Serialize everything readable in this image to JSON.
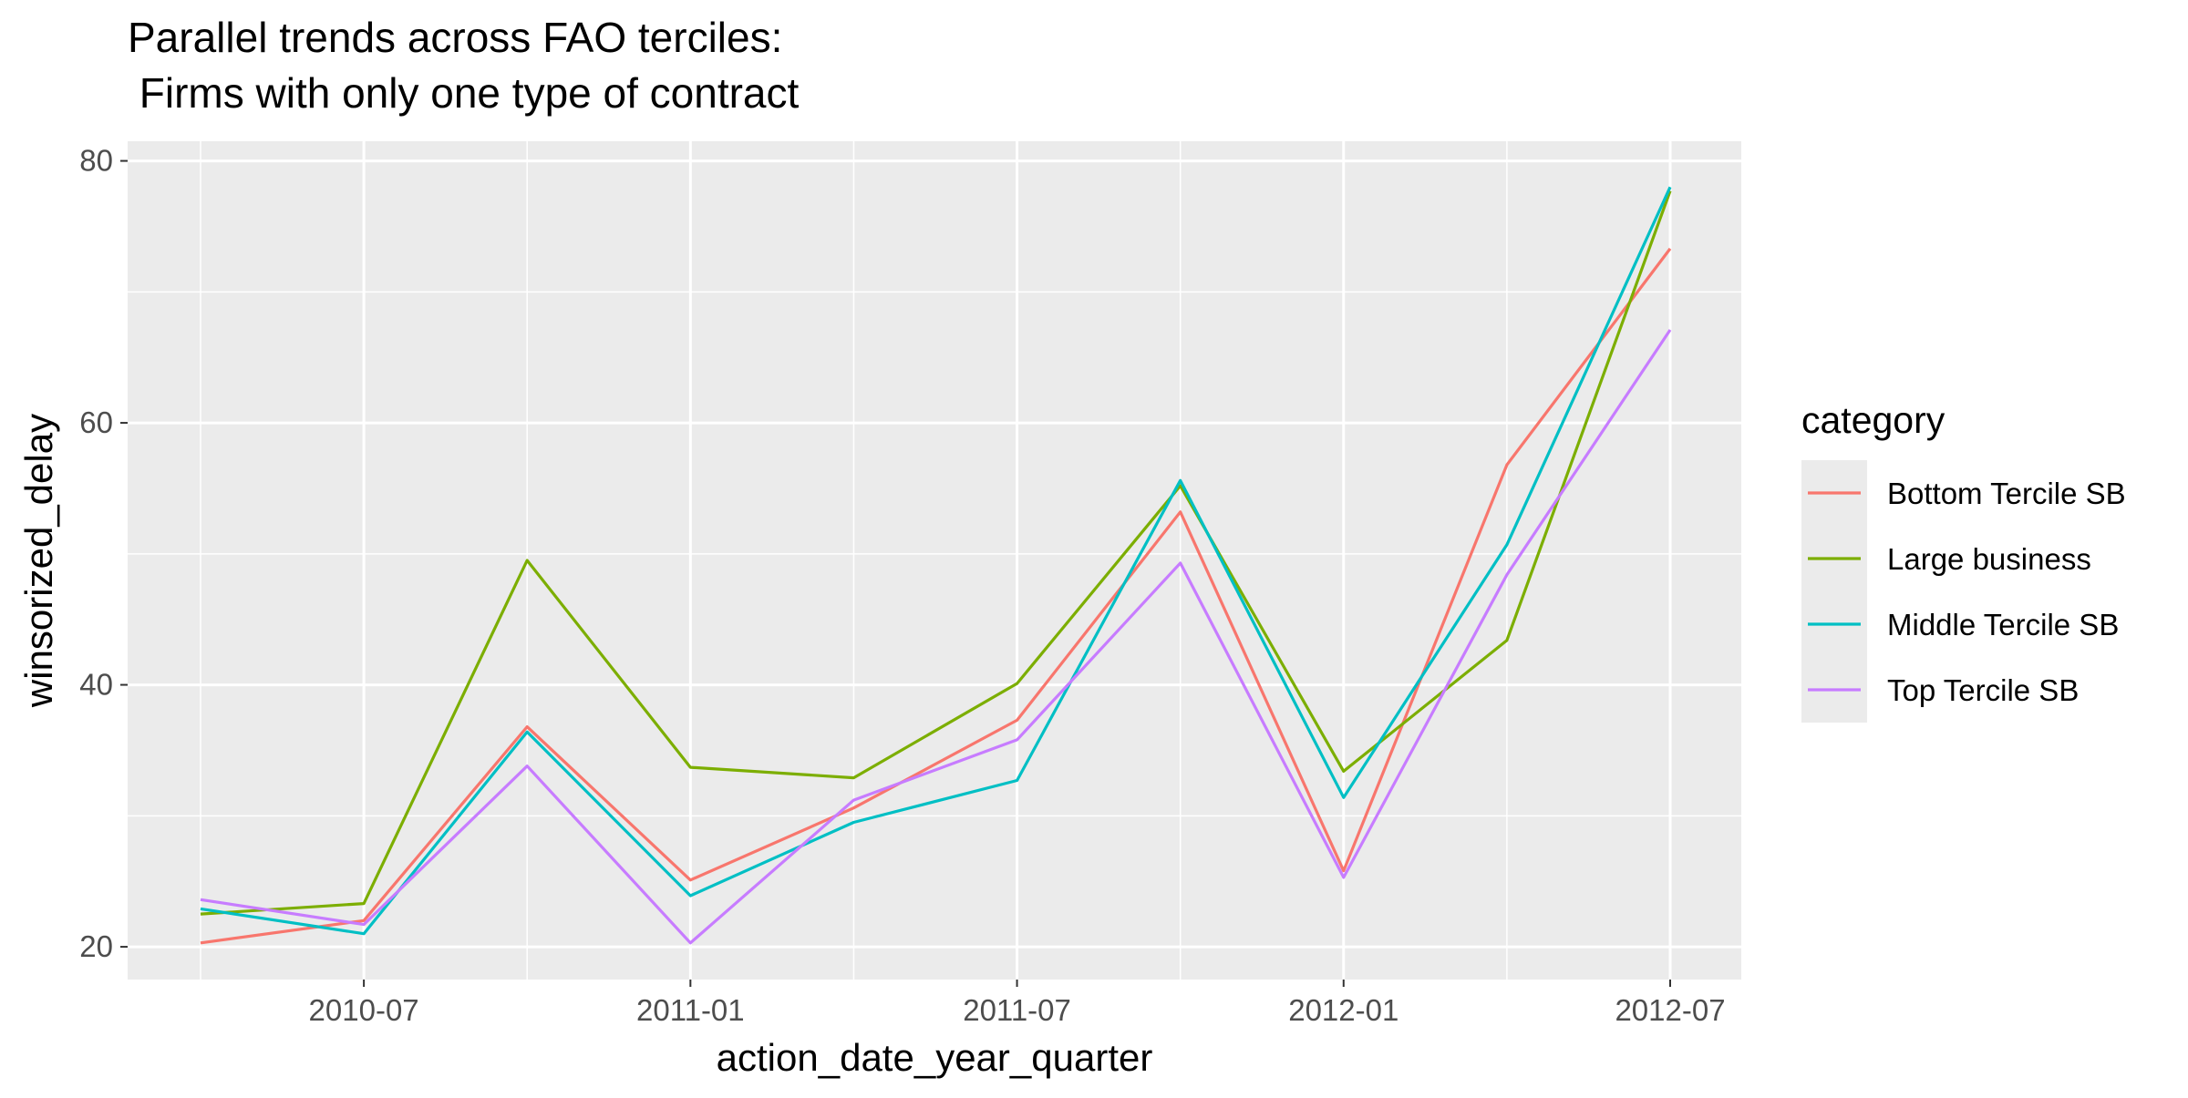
{
  "chart_data": {
    "type": "line",
    "title_line1": "Parallel trends across FAO terciles:",
    "title_line2": " Firms with only one type of contract",
    "xlabel": "action_date_year_quarter",
    "ylabel": "winsorized_delay",
    "x_tick_labels": [
      "2010-07",
      "2011-01",
      "2011-07",
      "2012-01",
      "2012-07"
    ],
    "y_tick_labels": [
      "20",
      "40",
      "60",
      "80"
    ],
    "ylim": [
      17.5,
      81.5
    ],
    "grid": true,
    "legend": {
      "title": "category",
      "position": "right"
    },
    "x": [
      "2010-04",
      "2010-07",
      "2010-10",
      "2011-01",
      "2011-04",
      "2011-07",
      "2011-10",
      "2012-01",
      "2012-04",
      "2012-07"
    ],
    "series": [
      {
        "name": "Bottom Tercile SB",
        "color": "#F8766D",
        "values": [
          20.3,
          22.0,
          36.8,
          25.1,
          30.6,
          37.3,
          53.2,
          25.8,
          56.8,
          73.3
        ]
      },
      {
        "name": "Large business",
        "color": "#7CAE00",
        "values": [
          22.5,
          23.3,
          49.5,
          33.7,
          32.9,
          40.1,
          55.2,
          33.4,
          43.4,
          77.7
        ]
      },
      {
        "name": "Middle Tercile SB",
        "color": "#00BFC4",
        "values": [
          22.9,
          21.0,
          36.4,
          23.9,
          29.5,
          32.7,
          55.6,
          31.4,
          50.7,
          78.0
        ]
      },
      {
        "name": "Top Tercile SB",
        "color": "#C77CFF",
        "values": [
          23.6,
          21.7,
          33.8,
          20.3,
          31.2,
          35.8,
          49.3,
          25.3,
          48.4,
          67.1
        ]
      }
    ]
  }
}
